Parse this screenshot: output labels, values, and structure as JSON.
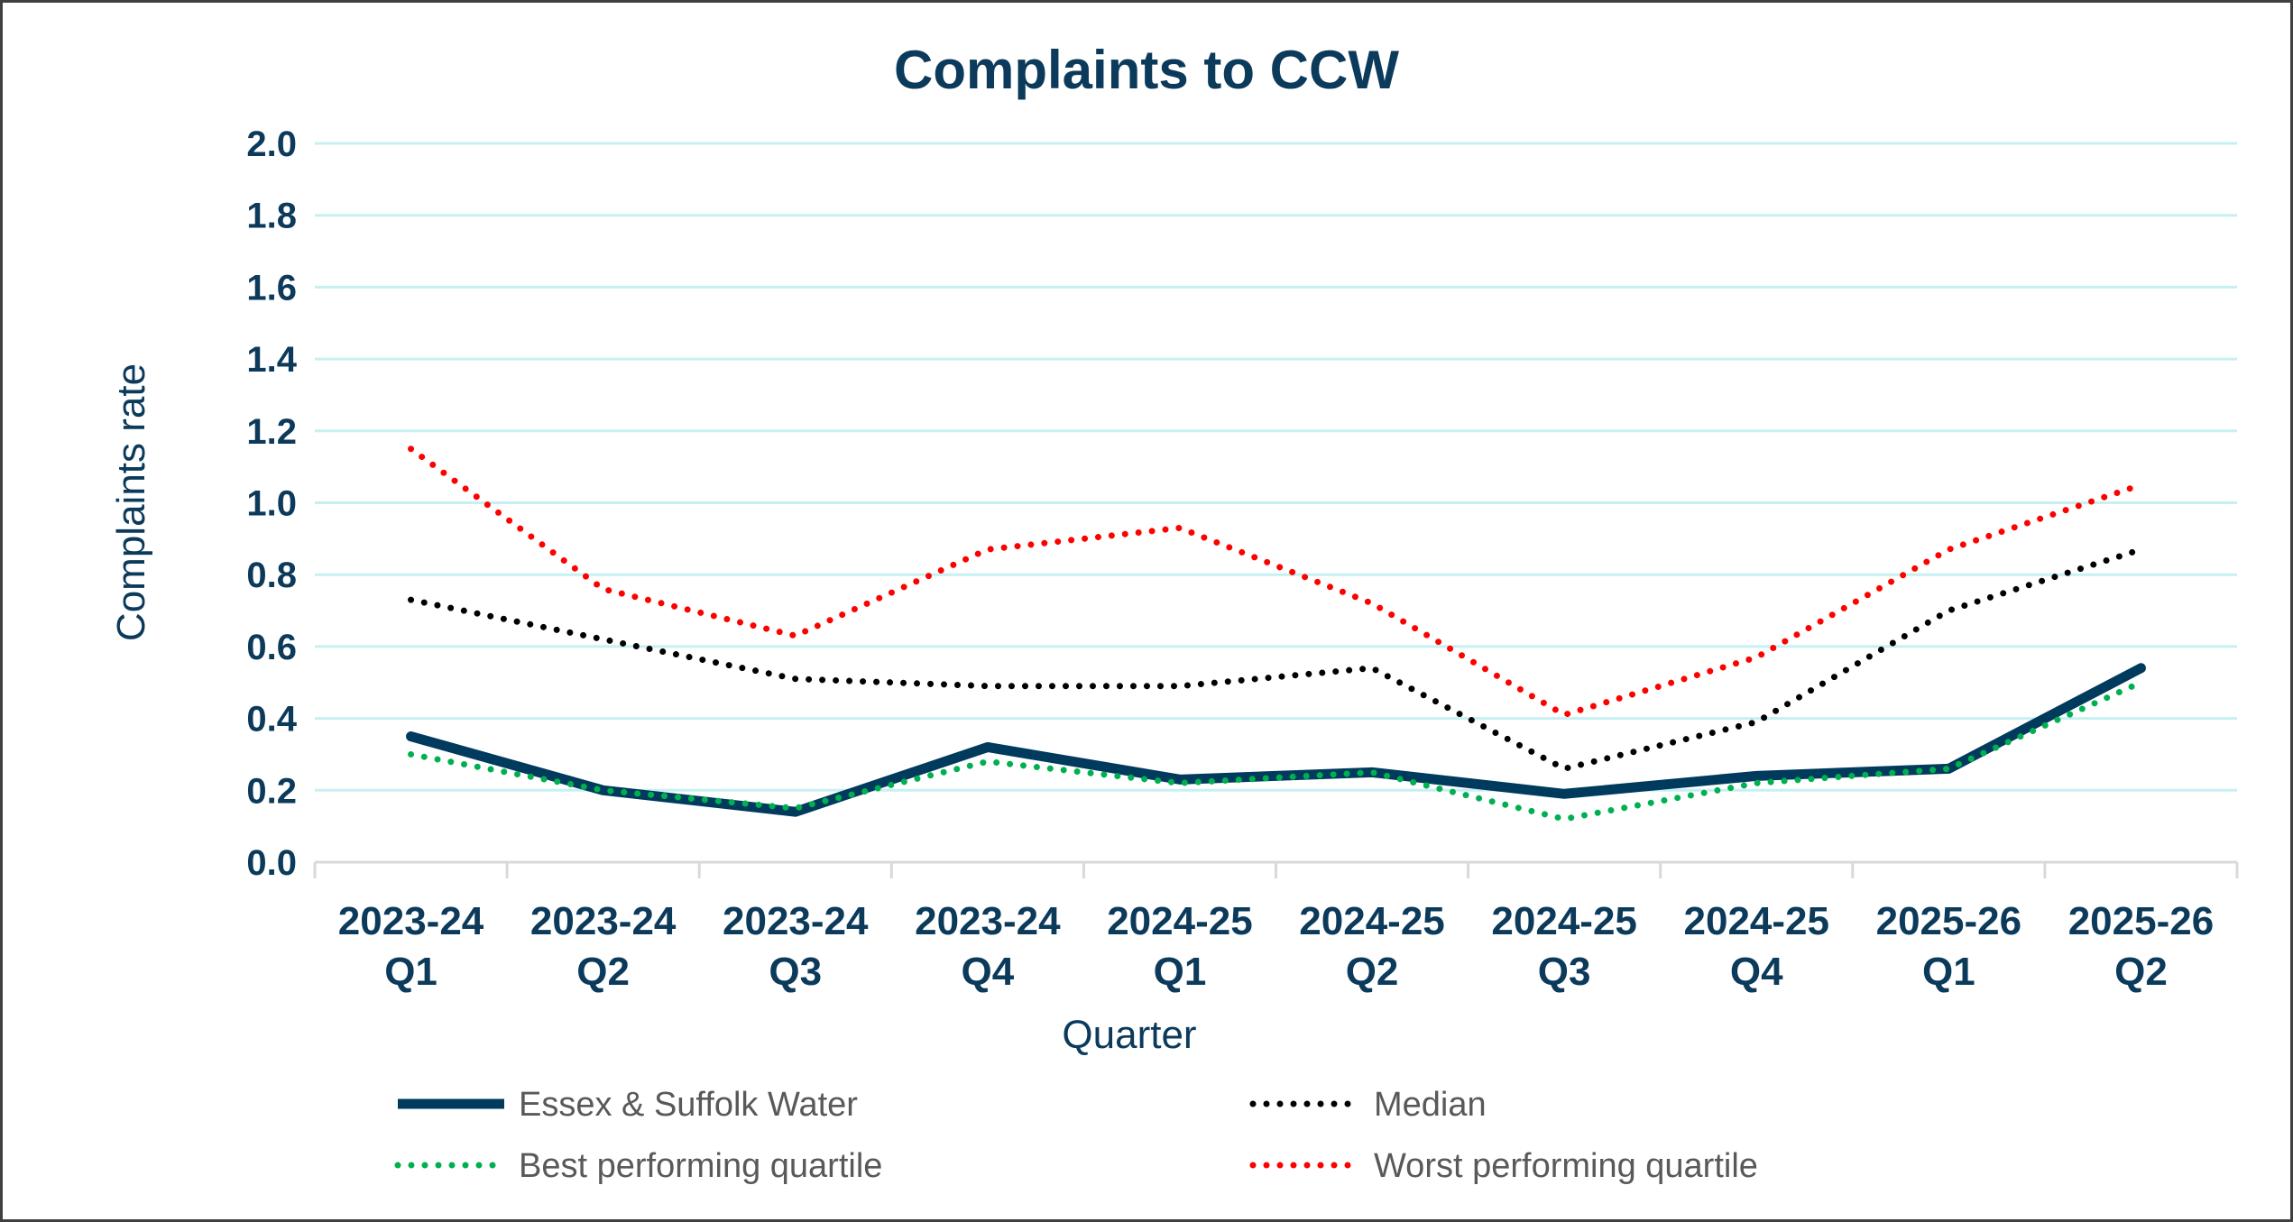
{
  "chart_data": {
    "type": "line",
    "title": "Complaints to CCW",
    "xlabel": "Quarter",
    "ylabel": "Complaints rate",
    "ylim": [
      0,
      2.0
    ],
    "yticks": [
      "0.0",
      "0.2",
      "0.4",
      "0.6",
      "0.8",
      "1.0",
      "1.2",
      "1.4",
      "1.6",
      "1.8",
      "2.0"
    ],
    "grid": true,
    "legend_position": "bottom",
    "categories": [
      [
        "2023-24",
        "Q1"
      ],
      [
        "2023-24",
        "Q2"
      ],
      [
        "2023-24",
        "Q3"
      ],
      [
        "2023-24",
        "Q4"
      ],
      [
        "2024-25",
        "Q1"
      ],
      [
        "2024-25",
        "Q2"
      ],
      [
        "2024-25",
        "Q3"
      ],
      [
        "2024-25",
        "Q4"
      ],
      [
        "2025-26",
        "Q1"
      ],
      [
        "2025-26",
        "Q2"
      ]
    ],
    "series": [
      {
        "name": "Essex & Suffolk Water",
        "color": "#003a5c",
        "style": "solid",
        "values": [
          0.35,
          0.2,
          0.14,
          0.32,
          0.23,
          0.25,
          0.19,
          0.24,
          0.26,
          0.54
        ]
      },
      {
        "name": "Median",
        "color": "#000000",
        "style": "dotted",
        "values": [
          0.73,
          0.62,
          0.51,
          0.49,
          0.49,
          0.54,
          0.26,
          0.39,
          0.7,
          0.87
        ]
      },
      {
        "name": "Best performing quartile",
        "color": "#00b050",
        "style": "dotted",
        "values": [
          0.3,
          0.2,
          0.15,
          0.28,
          0.22,
          0.25,
          0.12,
          0.22,
          0.26,
          0.5
        ]
      },
      {
        "name": "Worst performing quartile",
        "color": "#ff0000",
        "style": "dotted",
        "values": [
          1.15,
          0.76,
          0.63,
          0.87,
          0.93,
          0.72,
          0.41,
          0.57,
          0.87,
          1.05
        ]
      }
    ],
    "colors": {
      "text": "#0c3a5b",
      "grid": "#c6f0f2",
      "axis": "#d9d9d9",
      "legend_text": "#595959"
    }
  }
}
